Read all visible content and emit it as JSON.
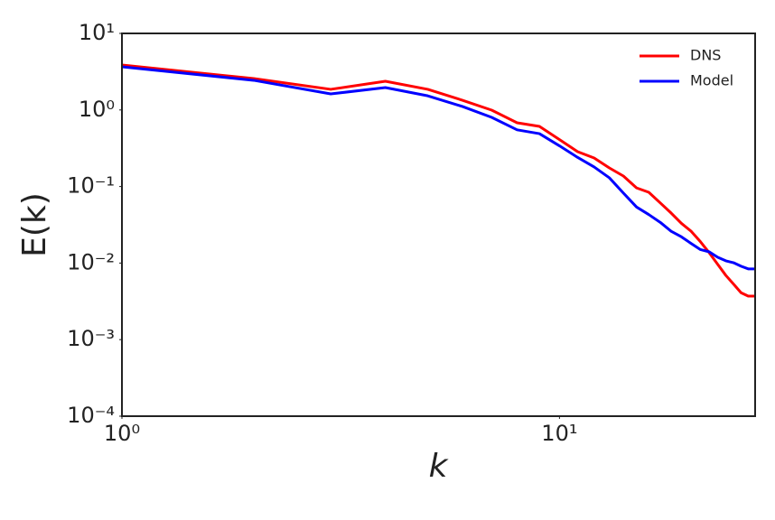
{
  "chart_data": {
    "type": "line",
    "x_label": "k",
    "y_label": "E(k)",
    "x": [
      1,
      2,
      3,
      4,
      5,
      6,
      7,
      8,
      9,
      10,
      11,
      12,
      13,
      14,
      15,
      16,
      17,
      18,
      19,
      20,
      21,
      22,
      23,
      24,
      25,
      26,
      27,
      28
    ],
    "series": [
      {
        "name": "DNS",
        "color": "#ff0000",
        "values": [
          3.87,
          2.57,
          1.86,
          2.37,
          1.86,
          1.34,
          0.995,
          0.68,
          0.61,
          0.41,
          0.285,
          0.236,
          0.175,
          0.137,
          0.096,
          0.084,
          0.061,
          0.045,
          0.033,
          0.026,
          0.019,
          0.0136,
          0.0096,
          0.0069,
          0.0053,
          0.0041,
          0.0037,
          0.0037
        ]
      },
      {
        "name": "Model",
        "color": "#0000ff",
        "values": [
          3.66,
          2.44,
          1.62,
          1.96,
          1.53,
          1.11,
          0.8,
          0.55,
          0.49,
          0.34,
          0.24,
          0.18,
          0.13,
          0.082,
          0.054,
          0.043,
          0.034,
          0.026,
          0.022,
          0.018,
          0.015,
          0.014,
          0.0119,
          0.0107,
          0.0101,
          0.0091,
          0.0084,
          0.0084
        ]
      }
    ],
    "xlim": [
      1,
      28
    ],
    "ylim": [
      0.0001,
      10
    ],
    "xscale": "log",
    "yscale": "log",
    "xticks": [
      {
        "value": 1,
        "label": "10⁰"
      },
      {
        "value": 10,
        "label": "10¹"
      }
    ],
    "yticks": [
      {
        "value": 10,
        "label": "10¹"
      },
      {
        "value": 1,
        "label": "10⁰"
      },
      {
        "value": 0.1,
        "label": "10⁻¹"
      },
      {
        "value": 0.01,
        "label": "10⁻²"
      },
      {
        "value": 0.001,
        "label": "10⁻³"
      },
      {
        "value": 0.0001,
        "label": "10⁻⁴"
      }
    ],
    "grid": false,
    "legend": "upper right"
  }
}
